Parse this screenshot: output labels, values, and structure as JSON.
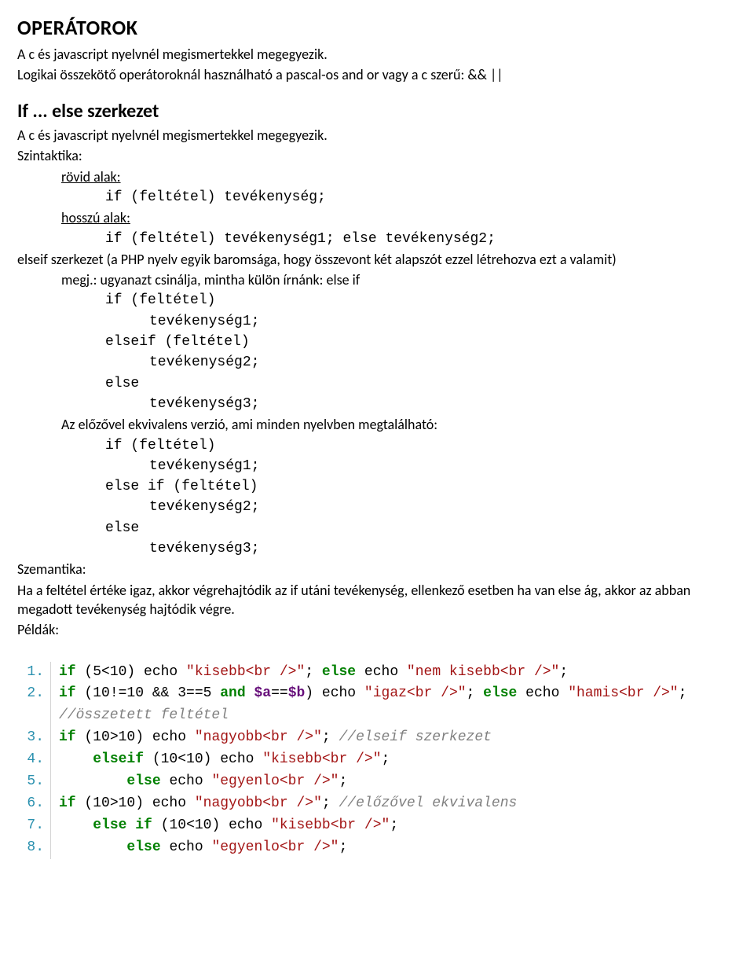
{
  "title_operators": "OPERÁTOROK",
  "p_op1": "A c és javascript nyelvnél megismertekkel megegyezik.",
  "p_op2": "Logikai összekötő operátoroknál használható a pascal-os and or vagy a c szerű: && ||",
  "title_if": "If ... else szerkezet",
  "p_if1": "A c és javascript nyelvnél megismertekkel megegyezik.",
  "syntax_label": "Szintaktika:",
  "short_label": "rövid alak:",
  "short_code": "if (feltétel) tevékenység;",
  "long_label": "hosszú alak:",
  "long_code": "if (feltétel) tevékenység1; else tevékenység2;",
  "elseif_note": "elseif szerkezet (a PHP nyelv egyik baromsága, hogy összevont két alapszót ezzel létrehozva ezt a valamit)",
  "megj_label": "megj.: ugyanazt csinálja, mintha külön írnánk: else if",
  "c1_l1": "if (feltétel)",
  "c1_l2": "tevékenység1;",
  "c1_l3": "elseif (feltétel)",
  "c1_l4": "tevékenység2;",
  "c1_l5": "else",
  "c1_l6": "tevékenység3;",
  "equiv_label": "Az előzővel ekvivalens verzió, ami minden nyelvben megtalálható:",
  "c2_l1": "if (feltétel)",
  "c2_l2": "tevékenység1;",
  "c2_l3": "else if (feltétel)",
  "c2_l4": "tevékenység2;",
  "c2_l5": "else",
  "c2_l6": "tevékenység3;",
  "semantics_label": "Szemantika:",
  "semantics_text": "Ha a feltétel értéke igaz, akkor végrehajtódik az if utáni tevékenység, ellenkező esetben ha van else ág, akkor az abban megadott tevékenység hajtódik végre.",
  "examples_label": "Példák:",
  "code": {
    "line_numbers": [
      "1.",
      "2.",
      "3.",
      "4.",
      "5.",
      "6.",
      "7.",
      "8."
    ],
    "l1": {
      "if": "if",
      "a": " (5<10) echo ",
      "s1": "\"kisebb<br />\"",
      "b": "; ",
      "else": "else",
      "c": " echo ",
      "s2": "\"nem kisebb<br />\"",
      "d": ";"
    },
    "l2": {
      "if": "if",
      "a": " (10!=10 && 3==5 ",
      "and": "and",
      "sp": " ",
      "v1": "$a",
      "eq": "==",
      "v2": "$b",
      "b": ") echo ",
      "s1": "\"igaz<br />\"",
      "c": "; ",
      "else": "else",
      "d": " echo ",
      "s2": "\"hamis<br />\"",
      "e": ";"
    },
    "l2c": "//összetett feltétel",
    "l3": {
      "if": "if",
      "a": " (10>10) echo ",
      "s1": "\"nagyobb<br />\"",
      "b": "; ",
      "cmt": "//elseif szerkezet"
    },
    "l4": {
      "pad": "    ",
      "elseif": "elseif",
      "a": " (10<10) echo ",
      "s1": "\"kisebb<br />\"",
      "b": ";"
    },
    "l5": {
      "pad": "        ",
      "else": "else",
      "a": " echo ",
      "s1": "\"egyenlo<br />\"",
      "b": ";"
    },
    "l6": {
      "if": "if",
      "a": " (10>10) echo ",
      "s1": "\"nagyobb<br />\"",
      "b": "; ",
      "cmt": "//előzővel ekvivalens"
    },
    "l7": {
      "pad": "    ",
      "else": "else",
      "sp": " ",
      "if": "if",
      "a": " (10<10) echo ",
      "s1": "\"kisebb<br />\"",
      "b": ";"
    },
    "l8": {
      "pad": "        ",
      "else": "else",
      "a": " echo ",
      "s1": "\"egyenlo<br />\"",
      "b": ";"
    }
  },
  "colors": {
    "keyword": "#008000",
    "string": "#a31515",
    "variable": "#660e7a",
    "comment": "#808080",
    "gutter": "#2b91af",
    "text": "#000000",
    "background": "#ffffff"
  }
}
